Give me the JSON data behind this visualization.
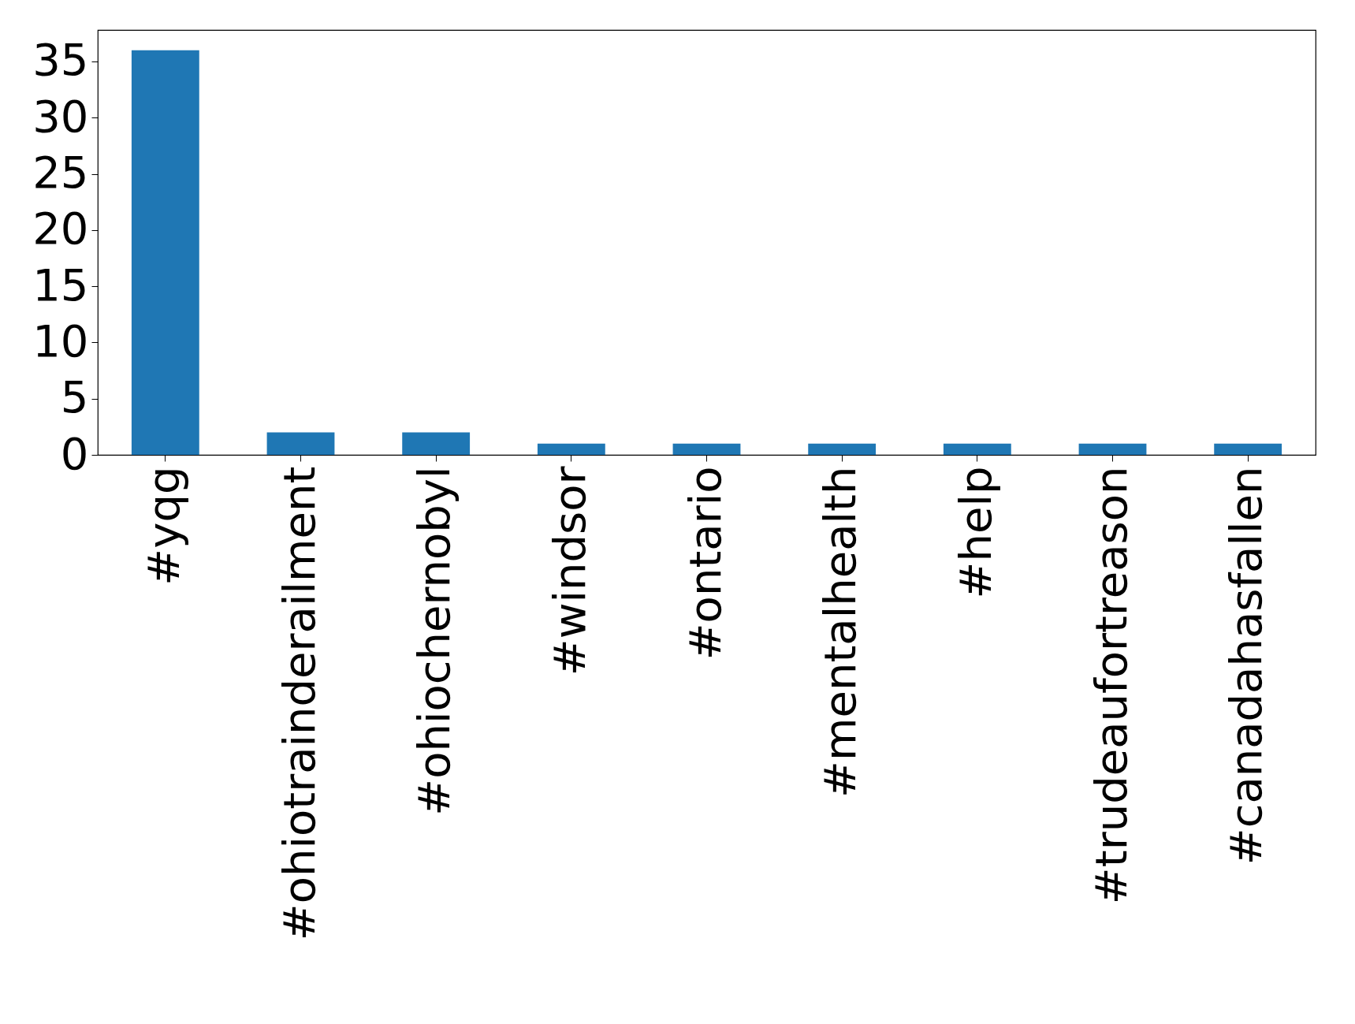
{
  "chart_data": {
    "type": "bar",
    "categories": [
      "#yqg",
      "#ohiotrainderailment",
      "#ohiochernobyl",
      "#windsor",
      "#ontario",
      "#mentalhealth",
      "#help",
      "#trudeaufortreason",
      "#canadahasfallen"
    ],
    "values": [
      36,
      2,
      2,
      1,
      1,
      1,
      1,
      1,
      1
    ],
    "color": "#1f77b4",
    "ylim": [
      0,
      37.8
    ],
    "yticks": [
      0,
      5,
      10,
      15,
      20,
      25,
      30,
      35
    ],
    "grid": false
  }
}
